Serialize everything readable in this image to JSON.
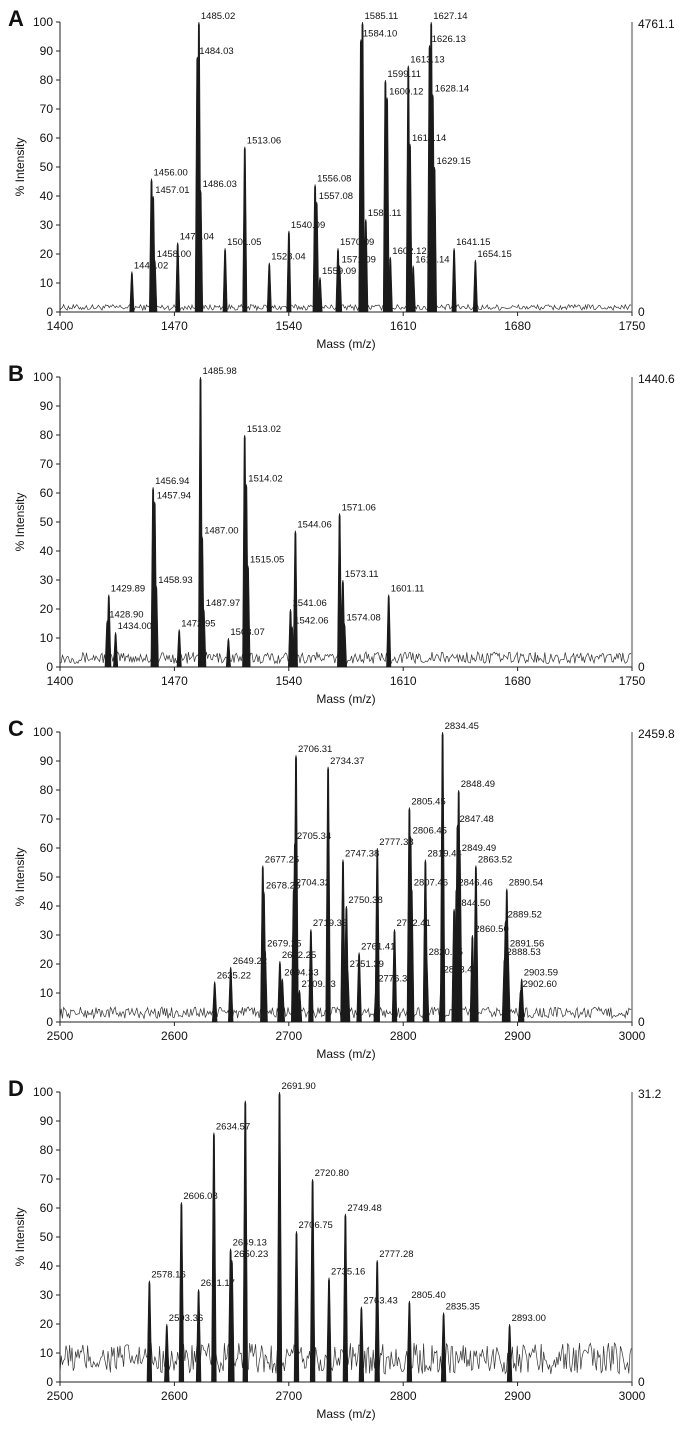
{
  "chart_data": [
    {
      "panel": "A",
      "type": "line",
      "xlabel": "Mass (m/z)",
      "ylabel": "% Intensity",
      "xlim": [
        1400,
        1750
      ],
      "ylim": [
        0,
        100
      ],
      "xticks": [
        1400,
        1470,
        1540,
        1610,
        1680,
        1750
      ],
      "yticks": [
        0,
        10,
        20,
        30,
        40,
        50,
        60,
        70,
        80,
        90,
        100
      ],
      "right_label": "4761.1",
      "right_zero": "0",
      "peaks": [
        {
          "x": 1444.02,
          "y": 14,
          "label": "1444.02"
        },
        {
          "x": 1456.0,
          "y": 46,
          "label": "1456.00"
        },
        {
          "x": 1457.01,
          "y": 40,
          "label": "1457.01"
        },
        {
          "x": 1458.0,
          "y": 18,
          "label": "1458.00"
        },
        {
          "x": 1472.04,
          "y": 24,
          "label": "1472.04"
        },
        {
          "x": 1485.02,
          "y": 100,
          "label": "1485.02"
        },
        {
          "x": 1484.03,
          "y": 88,
          "label": "1484.03"
        },
        {
          "x": 1486.03,
          "y": 42,
          "label": "1486.03"
        },
        {
          "x": 1501.05,
          "y": 22,
          "label": "1501.05"
        },
        {
          "x": 1513.06,
          "y": 57,
          "label": "1513.06"
        },
        {
          "x": 1528.04,
          "y": 17,
          "label": "1528.04"
        },
        {
          "x": 1540.09,
          "y": 28,
          "label": "1540.09"
        },
        {
          "x": 1556.08,
          "y": 44,
          "label": "1556.08"
        },
        {
          "x": 1557.08,
          "y": 38,
          "label": "1557.08"
        },
        {
          "x": 1570.09,
          "y": 22,
          "label": "1570.09"
        },
        {
          "x": 1571.09,
          "y": 16,
          "label": "1571.09"
        },
        {
          "x": 1559.09,
          "y": 12,
          "label": "1559.09"
        },
        {
          "x": 1585.11,
          "y": 100,
          "label": "1585.11"
        },
        {
          "x": 1584.1,
          "y": 94,
          "label": "1584.10"
        },
        {
          "x": 1587.11,
          "y": 32,
          "label": "1587.11"
        },
        {
          "x": 1599.11,
          "y": 80,
          "label": "1599.11"
        },
        {
          "x": 1600.12,
          "y": 74,
          "label": "1600.12"
        },
        {
          "x": 1602.12,
          "y": 19,
          "label": "1602.12"
        },
        {
          "x": 1613.13,
          "y": 85,
          "label": "1613.13"
        },
        {
          "x": 1614.14,
          "y": 58,
          "label": "1614.14"
        },
        {
          "x": 1616.14,
          "y": 16,
          "label": "1616.14"
        },
        {
          "x": 1627.14,
          "y": 100,
          "label": "1627.14"
        },
        {
          "x": 1626.13,
          "y": 92,
          "label": "1626.13"
        },
        {
          "x": 1628.14,
          "y": 75,
          "label": "1628.14"
        },
        {
          "x": 1629.15,
          "y": 50,
          "label": "1629.15"
        },
        {
          "x": 1641.15,
          "y": 22,
          "label": "1641.15"
        },
        {
          "x": 1654.15,
          "y": 18,
          "label": "1654.15"
        }
      ]
    },
    {
      "panel": "B",
      "type": "line",
      "xlabel": "Mass (m/z)",
      "ylabel": "% Intensity",
      "xlim": [
        1400,
        1750
      ],
      "ylim": [
        0,
        100
      ],
      "xticks": [
        1400,
        1470,
        1540,
        1610,
        1680,
        1750
      ],
      "yticks": [
        0,
        10,
        20,
        30,
        40,
        50,
        60,
        70,
        80,
        90,
        100
      ],
      "right_label": "1440.6",
      "right_zero": "0",
      "peaks": [
        {
          "x": 1429.89,
          "y": 25,
          "label": "1429.89"
        },
        {
          "x": 1428.9,
          "y": 16,
          "label": "1428.90"
        },
        {
          "x": 1434.0,
          "y": 12,
          "label": "1434.00"
        },
        {
          "x": 1456.94,
          "y": 62,
          "label": "1456.94"
        },
        {
          "x": 1457.94,
          "y": 57,
          "label": "1457.94"
        },
        {
          "x": 1458.93,
          "y": 28,
          "label": "1458.93"
        },
        {
          "x": 1472.95,
          "y": 13,
          "label": "1472.95"
        },
        {
          "x": 1485.98,
          "y": 100,
          "label": "1485.98"
        },
        {
          "x": 1487.0,
          "y": 45,
          "label": "1487.00"
        },
        {
          "x": 1487.97,
          "y": 20,
          "label": "1487.97"
        },
        {
          "x": 1503.07,
          "y": 10,
          "label": "1503.07"
        },
        {
          "x": 1513.02,
          "y": 80,
          "label": "1513.02"
        },
        {
          "x": 1514.02,
          "y": 63,
          "label": "1514.02"
        },
        {
          "x": 1515.05,
          "y": 35,
          "label": "1515.05"
        },
        {
          "x": 1541.06,
          "y": 20,
          "label": "1541.06"
        },
        {
          "x": 1542.06,
          "y": 14,
          "label": "1542.06"
        },
        {
          "x": 1544.06,
          "y": 47,
          "label": "1544.06"
        },
        {
          "x": 1571.06,
          "y": 53,
          "label": "1571.06"
        },
        {
          "x": 1573.11,
          "y": 30,
          "label": "1573.11"
        },
        {
          "x": 1574.08,
          "y": 15,
          "label": "1574.08"
        },
        {
          "x": 1601.11,
          "y": 25,
          "label": "1601.11"
        }
      ]
    },
    {
      "panel": "C",
      "type": "line",
      "xlabel": "Mass (m/z)",
      "ylabel": "% Intensity",
      "xlim": [
        2500,
        3000
      ],
      "ylim": [
        0,
        100
      ],
      "xticks": [
        2500,
        2600,
        2700,
        2800,
        2900,
        3000
      ],
      "yticks": [
        0,
        10,
        20,
        30,
        40,
        50,
        60,
        70,
        80,
        90,
        100
      ],
      "right_label": "2459.8",
      "right_zero": "0",
      "peaks": [
        {
          "x": 2635.22,
          "y": 14,
          "label": "2635.22"
        },
        {
          "x": 2649.22,
          "y": 19,
          "label": "2649.22"
        },
        {
          "x": 2677.25,
          "y": 54,
          "label": "2677.25"
        },
        {
          "x": 2678.25,
          "y": 45,
          "label": "2678.25"
        },
        {
          "x": 2679.25,
          "y": 25,
          "label": "2679.25"
        },
        {
          "x": 2692.25,
          "y": 21,
          "label": "2692.25"
        },
        {
          "x": 2694.33,
          "y": 15,
          "label": "2694.33"
        },
        {
          "x": 2706.31,
          "y": 92,
          "label": "2706.31"
        },
        {
          "x": 2705.34,
          "y": 62,
          "label": "2705.34"
        },
        {
          "x": 2704.32,
          "y": 46,
          "label": "2704.32"
        },
        {
          "x": 2709.33,
          "y": 11,
          "label": "2709.33"
        },
        {
          "x": 2719.36,
          "y": 32,
          "label": "2719.36"
        },
        {
          "x": 2734.37,
          "y": 88,
          "label": "2734.37"
        },
        {
          "x": 2747.38,
          "y": 56,
          "label": "2747.38"
        },
        {
          "x": 2750.38,
          "y": 40,
          "label": "2750.38"
        },
        {
          "x": 2751.39,
          "y": 18,
          "label": "2751.39"
        },
        {
          "x": 2761.41,
          "y": 24,
          "label": "2761.41"
        },
        {
          "x": 2776.37,
          "y": 13,
          "label": "2776.37"
        },
        {
          "x": 2777.38,
          "y": 60,
          "label": "2777.38"
        },
        {
          "x": 2792.41,
          "y": 32,
          "label": "2792.41"
        },
        {
          "x": 2805.45,
          "y": 74,
          "label": "2805.45"
        },
        {
          "x": 2806.45,
          "y": 64,
          "label": "2806.45"
        },
        {
          "x": 2807.46,
          "y": 46,
          "label": "2807.46"
        },
        {
          "x": 2819.44,
          "y": 56,
          "label": "2819.44"
        },
        {
          "x": 2820.45,
          "y": 22,
          "label": "2820.45"
        },
        {
          "x": 2833.49,
          "y": 16,
          "label": "2833.49"
        },
        {
          "x": 2834.45,
          "y": 100,
          "label": "2834.45"
        },
        {
          "x": 2846.46,
          "y": 46,
          "label": "2846.46"
        },
        {
          "x": 2848.49,
          "y": 80,
          "label": "2848.49"
        },
        {
          "x": 2847.48,
          "y": 68,
          "label": "2847.48"
        },
        {
          "x": 2849.49,
          "y": 58,
          "label": "2849.49"
        },
        {
          "x": 2844.5,
          "y": 39,
          "label": "2844.50"
        },
        {
          "x": 2860.5,
          "y": 30,
          "label": "2860.50"
        },
        {
          "x": 2863.52,
          "y": 54,
          "label": "2863.52"
        },
        {
          "x": 2888.53,
          "y": 22,
          "label": "2888.53"
        },
        {
          "x": 2889.52,
          "y": 35,
          "label": "2889.52"
        },
        {
          "x": 2890.54,
          "y": 46,
          "label": "2890.54"
        },
        {
          "x": 2891.56,
          "y": 25,
          "label": "2891.56"
        },
        {
          "x": 2903.59,
          "y": 15,
          "label": "2903.59"
        },
        {
          "x": 2902.6,
          "y": 11,
          "label": "2902.60"
        }
      ]
    },
    {
      "panel": "D",
      "type": "line",
      "xlabel": "Mass (m/z)",
      "ylabel": "% Intensity",
      "xlim": [
        2500,
        3000
      ],
      "ylim": [
        0,
        100
      ],
      "xticks": [
        2500,
        2600,
        2700,
        2800,
        2900,
        3000
      ],
      "yticks": [
        0,
        10,
        20,
        30,
        40,
        50,
        60,
        70,
        80,
        90,
        100
      ],
      "right_label": "31.2",
      "right_zero": "0",
      "peaks": [
        {
          "x": 2578.16,
          "y": 35,
          "label": "2578.16"
        },
        {
          "x": 2593.36,
          "y": 20,
          "label": "2593.36"
        },
        {
          "x": 2606.08,
          "y": 62,
          "label": "2606.08"
        },
        {
          "x": 2621.17,
          "y": 32,
          "label": "2621.17"
        },
        {
          "x": 2634.57,
          "y": 86,
          "label": "2634.57"
        },
        {
          "x": 2649.13,
          "y": 46,
          "label": "2649.13"
        },
        {
          "x": 2650.23,
          "y": 42,
          "label": "2650.23"
        },
        {
          "x": 2662.0,
          "y": 97,
          "label": ""
        },
        {
          "x": 2691.9,
          "y": 100,
          "label": "2691.90"
        },
        {
          "x": 2706.75,
          "y": 52,
          "label": "2706.75"
        },
        {
          "x": 2720.8,
          "y": 70,
          "label": "2720.80"
        },
        {
          "x": 2735.16,
          "y": 36,
          "label": "2735.16"
        },
        {
          "x": 2749.48,
          "y": 58,
          "label": "2749.48"
        },
        {
          "x": 2763.43,
          "y": 26,
          "label": "2763.43"
        },
        {
          "x": 2777.28,
          "y": 42,
          "label": "2777.28"
        },
        {
          "x": 2805.4,
          "y": 28,
          "label": "2805.40"
        },
        {
          "x": 2835.35,
          "y": 24,
          "label": "2835.35"
        },
        {
          "x": 2893.0,
          "y": 20,
          "label": "2893.00"
        }
      ]
    }
  ]
}
